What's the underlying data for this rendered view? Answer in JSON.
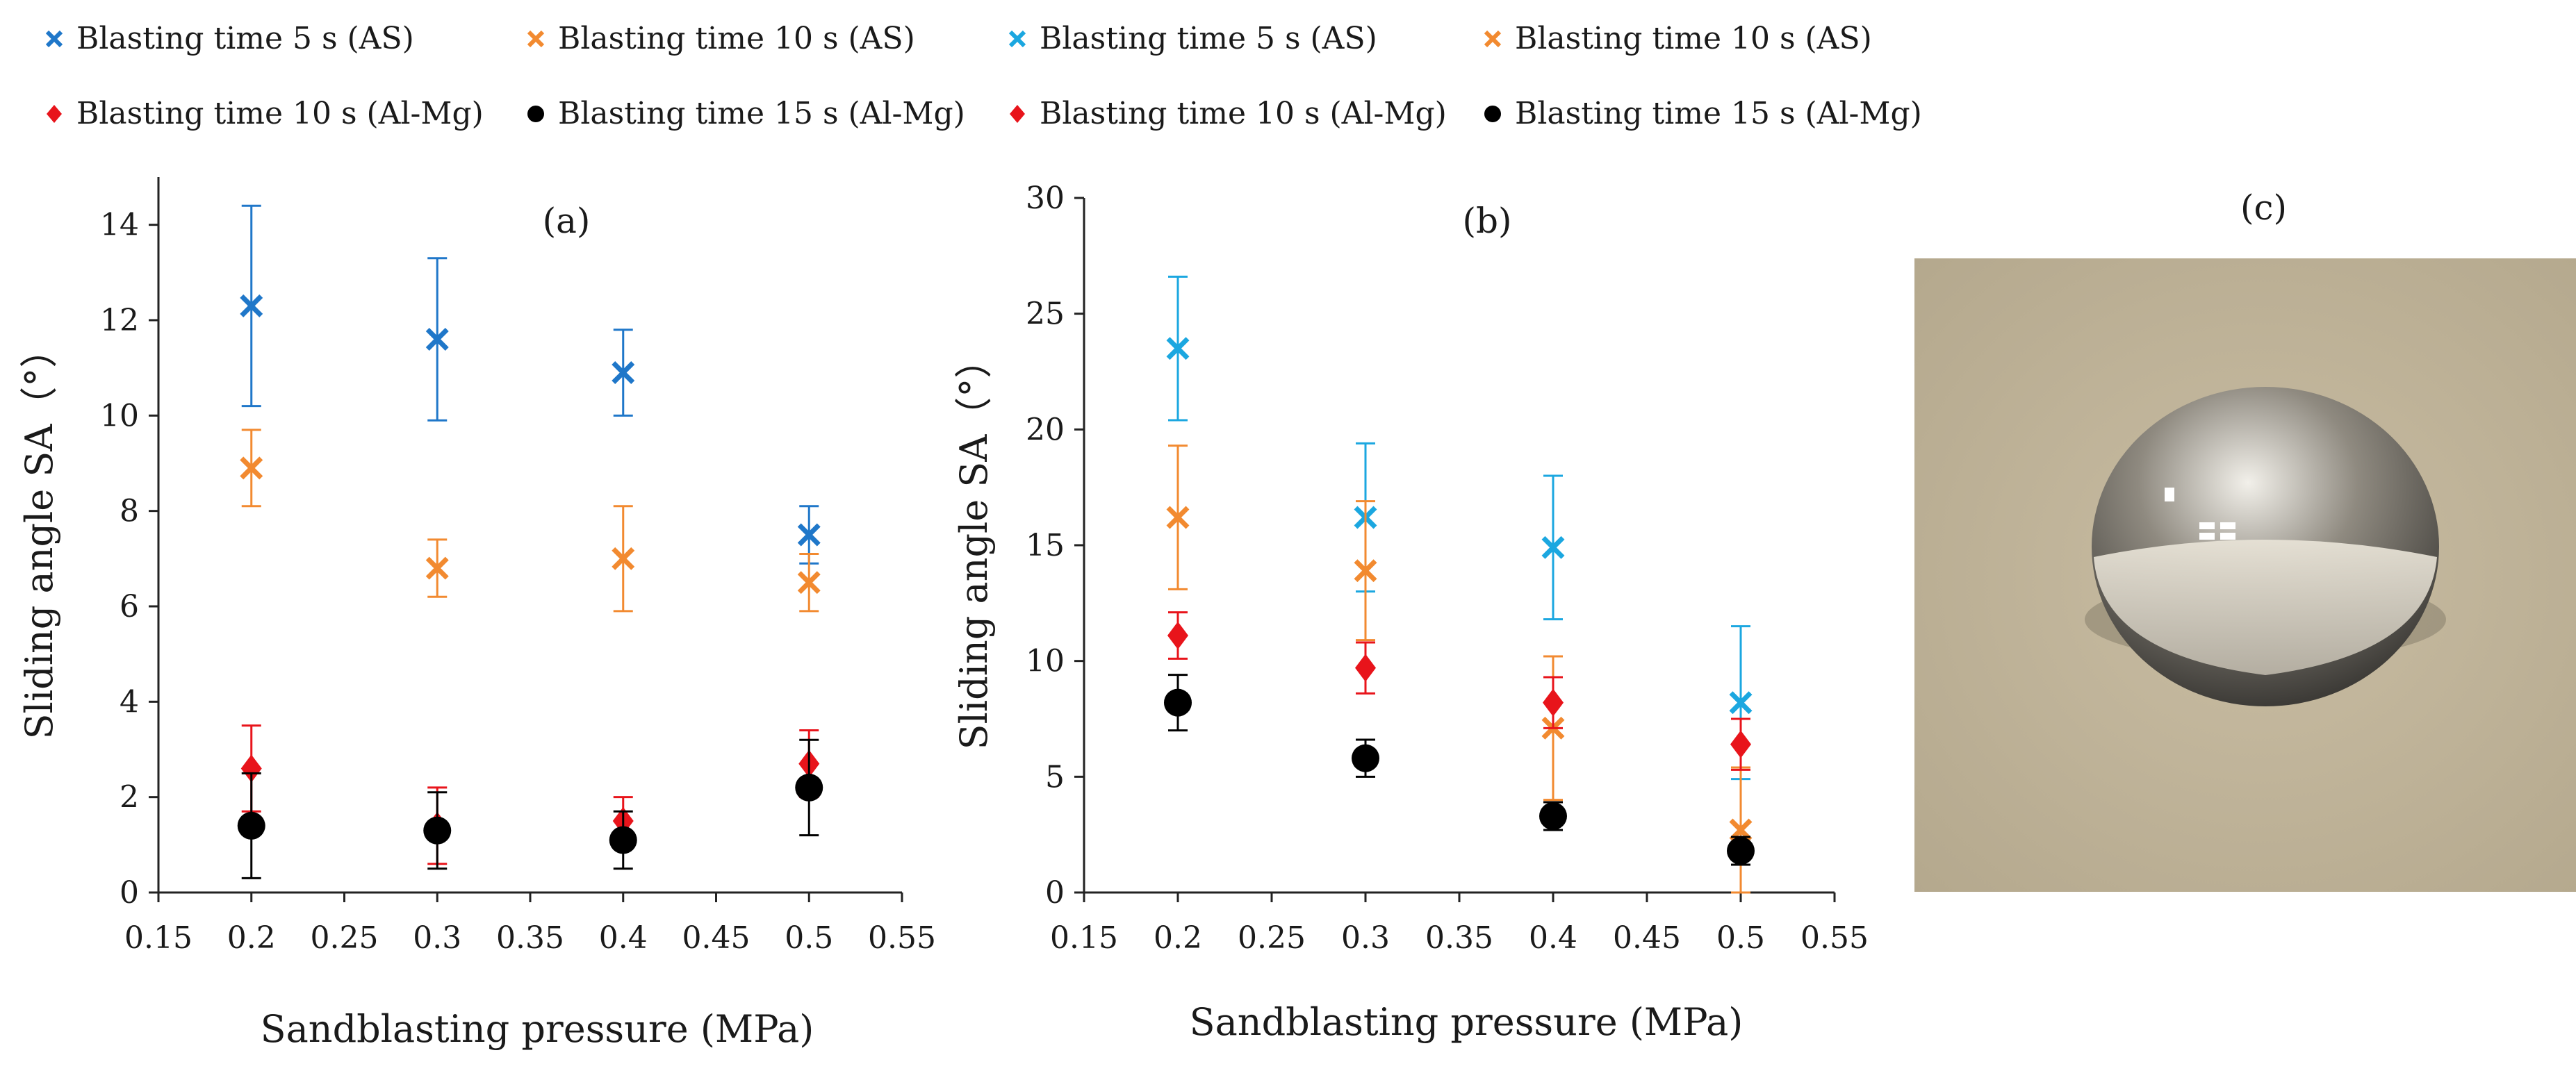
{
  "legend": [
    {
      "label": "Blasting time 5 s (AS)",
      "marker": "x",
      "color": "#1f77c9"
    },
    {
      "label": "Blasting time 10 s (AS)",
      "marker": "x",
      "color": "#f28a30"
    },
    {
      "label": "Blasting time 5 s (AS)",
      "marker": "x",
      "color": "#1ba7e0"
    },
    {
      "label": "Blasting time 10 s (AS)",
      "marker": "x",
      "color": "#f28a30"
    },
    {
      "label": "Blasting time 10 s (Al-Mg)",
      "marker": "diamond",
      "color": "#e8141b"
    },
    {
      "label": "Blasting time 15 s (Al-Mg)",
      "marker": "circle",
      "color": "#000000"
    },
    {
      "label": "Blasting time 10 s (Al-Mg)",
      "marker": "diamond",
      "color": "#e8141b"
    },
    {
      "label": "Blasting time 15 s (Al-Mg)",
      "marker": "circle",
      "color": "#000000"
    }
  ],
  "chart_data": [
    {
      "type": "scatter",
      "panel_label": "(a)",
      "xlabel": "Sandblasting pressure (MPa)",
      "ylabel": "Sliding angle SA（°）",
      "xlim": [
        0.15,
        0.55
      ],
      "ylim": [
        0,
        15
      ],
      "xticks": [
        "0.15",
        "0.2",
        "0.25",
        "0.3",
        "0.35",
        "0.4",
        "0.45",
        "0.5",
        "0.55"
      ],
      "yticks": [
        "0",
        "2",
        "4",
        "6",
        "8",
        "10",
        "12",
        "14"
      ],
      "series": [
        {
          "name": "Blasting time 5 s (AS)",
          "marker": "x",
          "color": "#1f77c9",
          "x": [
            0.2,
            0.3,
            0.4,
            0.5
          ],
          "y": [
            12.3,
            11.6,
            10.9,
            7.5
          ],
          "err": [
            2.1,
            1.7,
            0.9,
            0.6
          ]
        },
        {
          "name": "Blasting time 10 s (AS)",
          "marker": "x",
          "color": "#f28a30",
          "x": [
            0.2,
            0.3,
            0.4,
            0.5
          ],
          "y": [
            8.9,
            6.8,
            7.0,
            6.5
          ],
          "err": [
            0.8,
            0.6,
            1.1,
            0.6
          ]
        },
        {
          "name": "Blasting time 10 s (Al-Mg)",
          "marker": "diamond",
          "color": "#e8141b",
          "x": [
            0.2,
            0.3,
            0.4,
            0.5
          ],
          "y": [
            2.6,
            1.4,
            1.5,
            2.7
          ],
          "err": [
            0.9,
            0.8,
            0.5,
            0.7
          ]
        },
        {
          "name": "Blasting time 15 s (Al-Mg)",
          "marker": "circle",
          "color": "#000000",
          "x": [
            0.2,
            0.3,
            0.4,
            0.5
          ],
          "y": [
            1.4,
            1.3,
            1.1,
            2.2
          ],
          "err": [
            1.1,
            0.8,
            0.6,
            1.0
          ]
        }
      ]
    },
    {
      "type": "scatter",
      "panel_label": "(b)",
      "xlabel": "Sandblasting pressure (MPa)",
      "ylabel": "Sliding angle SA（°）",
      "xlim": [
        0.15,
        0.55
      ],
      "ylim": [
        0,
        30
      ],
      "xticks": [
        "0.15",
        "0.2",
        "0.25",
        "0.3",
        "0.35",
        "0.4",
        "0.45",
        "0.5",
        "0.55"
      ],
      "yticks": [
        "0",
        "5",
        "10",
        "15",
        "20",
        "25",
        "30"
      ],
      "series": [
        {
          "name": "Blasting time 5 s (AS)",
          "marker": "x",
          "color": "#1ba7e0",
          "x": [
            0.2,
            0.3,
            0.4,
            0.5
          ],
          "y": [
            23.5,
            16.2,
            14.9,
            8.2
          ],
          "err": [
            3.1,
            3.2,
            3.1,
            3.3
          ]
        },
        {
          "name": "Blasting time 10 s (AS)",
          "marker": "x",
          "color": "#f28a30",
          "x": [
            0.2,
            0.3,
            0.4,
            0.5
          ],
          "y": [
            16.2,
            13.9,
            7.1,
            2.7
          ],
          "err": [
            3.1,
            3.0,
            3.1,
            2.7
          ]
        },
        {
          "name": "Blasting time 10 s (Al-Mg)",
          "marker": "diamond",
          "color": "#e8141b",
          "x": [
            0.2,
            0.3,
            0.4,
            0.5
          ],
          "y": [
            11.1,
            9.7,
            8.2,
            6.4
          ],
          "err": [
            1.0,
            1.1,
            1.1,
            1.1
          ]
        },
        {
          "name": "Blasting time 15 s (Al-Mg)",
          "marker": "circle",
          "color": "#000000",
          "x": [
            0.2,
            0.3,
            0.4,
            0.5
          ],
          "y": [
            8.2,
            5.8,
            3.3,
            1.8
          ],
          "err": [
            1.2,
            0.8,
            0.6,
            0.6
          ]
        }
      ]
    }
  ],
  "photo_panel": {
    "panel_label": "(c)",
    "subject": "water-droplet-photo"
  }
}
